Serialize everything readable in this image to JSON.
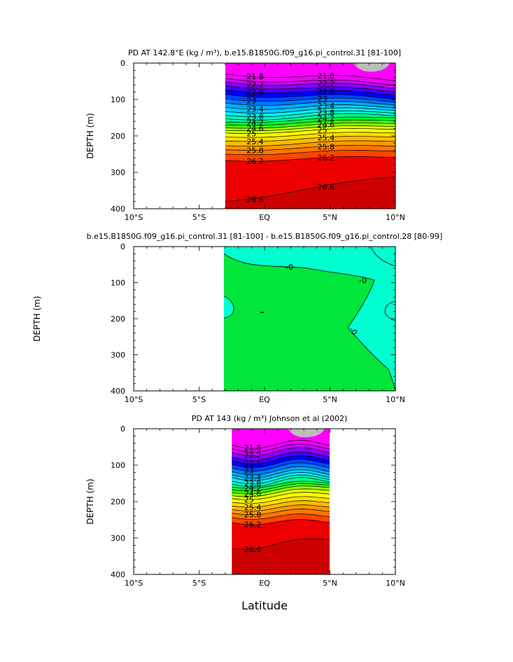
{
  "chart_data": [
    {
      "type": "contour",
      "title": "PD AT 142.8°E (kg / m³), b.e15.B1850G.f09_g16.pi_control.31 [81-100]",
      "ylabel": "DEPTH (m)",
      "xlabel": "",
      "x_ticks": [
        "10°S",
        "5°S",
        "EQ",
        "5°N",
        "10°N"
      ],
      "x_range": [
        -10,
        10
      ],
      "y_ticks": [
        "0",
        "100",
        "200",
        "300",
        "400"
      ],
      "y_range": [
        0,
        400
      ],
      "data_extent_lat": [
        -3,
        10
      ],
      "contour_labels": [
        "21.8",
        "22.2",
        "22.6",
        "23",
        "23.4",
        "23.8",
        "24.2",
        "24.6",
        "25",
        "25.4",
        "25.8",
        "26.2",
        "26.6",
        "21.8",
        "22.2",
        "22.6",
        "23",
        "23.4",
        "23.8",
        "24.2",
        "24.6",
        "25",
        "25.4",
        "25.8",
        "26.2",
        "26.6"
      ],
      "levels": [
        21.8,
        22.0,
        22.2,
        22.4,
        22.6,
        22.8,
        23.0,
        23.2,
        23.4,
        23.6,
        23.8,
        24.0,
        24.2,
        24.4,
        24.6,
        24.8,
        25.0,
        25.2,
        25.4,
        25.6,
        25.8,
        26.0,
        26.2,
        26.6
      ],
      "isopycnal_depths_west_m": [
        30,
        42,
        52,
        62,
        74,
        86,
        98,
        110,
        122,
        133,
        144,
        153,
        162,
        170,
        178,
        185,
        192,
        203,
        214,
        227,
        238,
        250,
        268,
        380
      ],
      "isopycnal_depths_east_m": [
        45,
        58,
        66,
        76,
        85,
        96,
        104,
        112,
        120,
        127,
        134,
        141,
        148,
        156,
        164,
        172,
        180,
        190,
        201,
        213,
        226,
        240,
        257,
        310
      ]
    },
    {
      "type": "contour",
      "title": "b.e15.B1850G.f09_g16.pi_control.31 [81-100] - b.e15.B1850G.f09_g16.pi_control.28 [80-99]",
      "ylabel": "DEPTH (m)",
      "xlabel": "",
      "x_ticks": [
        "10°S",
        "5°S",
        "EQ",
        "5°N",
        "10°N"
      ],
      "x_range": [
        -10,
        10
      ],
      "y_ticks": [
        "0",
        "100",
        "200",
        "300",
        "400"
      ],
      "y_range": [
        0,
        400
      ],
      "data_extent_lat": [
        -3,
        10
      ],
      "contour_labels": [
        "-0",
        "-0",
        "-0"
      ],
      "colors": {
        "negative": "#00ffd0",
        "positive": "#00e63a"
      }
    },
    {
      "type": "contour",
      "title": "PD AT 143 (kg / m³) Johnson et al (2002)",
      "ylabel": "DEPTH (m)",
      "xlabel": "Latitude",
      "x_ticks": [
        "10°S",
        "5°S",
        "EQ",
        "5°N",
        "10°N"
      ],
      "x_range": [
        -10,
        10
      ],
      "y_ticks": [
        "0",
        "100",
        "200",
        "300",
        "400"
      ],
      "y_range": [
        0,
        400
      ],
      "data_extent_lat": [
        -2.5,
        5
      ],
      "contour_labels": [
        "21.8",
        "22.2",
        "22.6",
        "23",
        "23.4",
        "23.8",
        "24.2",
        "24.6",
        "25",
        "25.4",
        "25.8",
        "26.2",
        "26.6"
      ],
      "levels": [
        21.8,
        22.0,
        22.2,
        22.4,
        22.6,
        22.8,
        23.0,
        23.2,
        23.4,
        23.6,
        23.8,
        24.0,
        24.2,
        24.4,
        24.6,
        24.8,
        25.0,
        25.2,
        25.4,
        25.6,
        25.8,
        26.0,
        26.2,
        26.6
      ],
      "isopycnal_depths_west_m": [
        45,
        55,
        65,
        78,
        88,
        98,
        108,
        118,
        127,
        134,
        144,
        152,
        160,
        168,
        176,
        184,
        192,
        202,
        212,
        222,
        232,
        244,
        258,
        330
      ],
      "isopycnal_depths_east_m": [
        40,
        50,
        60,
        72,
        82,
        92,
        102,
        112,
        120,
        128,
        134,
        140,
        146,
        152,
        158,
        166,
        176,
        188,
        200,
        212,
        224,
        238,
        254,
        300
      ]
    }
  ],
  "colors": {
    "ramp": [
      "#ff00ff",
      "#ee00ff",
      "#cc00ff",
      "#8800ff",
      "#4400ff",
      "#0000ff",
      "#0044ff",
      "#0077ff",
      "#00aaff",
      "#00ccff",
      "#00eeee",
      "#00ffcc",
      "#00ff88",
      "#00ff40",
      "#44ff00",
      "#99ff00",
      "#ddff00",
      "#ffff00",
      "#ffdd00",
      "#ffbb00",
      "#ff9900",
      "#ff7700",
      "#ff4400",
      "#ee0000",
      "#cc0000"
    ],
    "missing": "#bcbcbc"
  }
}
